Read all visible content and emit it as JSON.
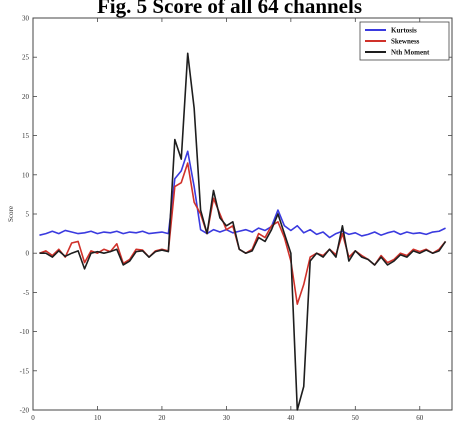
{
  "figure_title": "Fig. 5 Score of all 64 channels",
  "colors": {
    "kurtosis": "#3a3adf",
    "skewness": "#d0312a",
    "nth_moment": "#1e1e1e",
    "axes": "#444444"
  },
  "chart_data": {
    "type": "line",
    "title": "Fig. 5 Score of all 64 channels",
    "xlabel": "",
    "ylabel": "Score",
    "xlim": [
      0,
      65
    ],
    "ylim": [
      -20,
      30
    ],
    "xticks": [
      0,
      10,
      20,
      30,
      40,
      50,
      60
    ],
    "yticks": [
      -20,
      -15,
      -10,
      -5,
      0,
      5,
      10,
      15,
      20,
      25,
      30
    ],
    "xtick_labels": [
      "0",
      "10",
      "20",
      "30",
      "40",
      "50",
      "60"
    ],
    "ytick_labels": [
      "-20",
      "-15",
      "-10",
      "-5",
      "0",
      "5",
      "10",
      "15",
      "20",
      "25",
      "30"
    ],
    "grid": false,
    "legend_position": "top-right",
    "x": [
      1,
      2,
      3,
      4,
      5,
      6,
      7,
      8,
      9,
      10,
      11,
      12,
      13,
      14,
      15,
      16,
      17,
      18,
      19,
      20,
      21,
      22,
      23,
      24,
      25,
      26,
      27,
      28,
      29,
      30,
      31,
      32,
      33,
      34,
      35,
      36,
      37,
      38,
      39,
      40,
      41,
      42,
      43,
      44,
      45,
      46,
      47,
      48,
      49,
      50,
      51,
      52,
      53,
      54,
      55,
      56,
      57,
      58,
      59,
      60,
      61,
      62,
      63,
      64
    ],
    "series": [
      {
        "name": "Kurtosis",
        "color": "#3a3adf",
        "values": [
          2.3,
          2.5,
          2.8,
          2.5,
          2.9,
          2.7,
          2.5,
          2.6,
          2.8,
          2.5,
          2.7,
          2.6,
          2.8,
          2.5,
          2.7,
          2.6,
          2.8,
          2.5,
          2.6,
          2.7,
          2.5,
          9.5,
          10.5,
          13.0,
          8.5,
          3.0,
          2.5,
          3.0,
          2.7,
          3.0,
          2.6,
          2.8,
          3.0,
          2.7,
          3.2,
          2.9,
          3.4,
          5.5,
          3.5,
          2.9,
          3.5,
          2.6,
          3.0,
          2.4,
          2.7,
          2.0,
          2.5,
          2.8,
          2.4,
          2.6,
          2.2,
          2.4,
          2.7,
          2.3,
          2.6,
          2.8,
          2.4,
          2.7,
          2.5,
          2.6,
          2.4,
          2.7,
          2.8,
          3.2
        ]
      },
      {
        "name": "Skewness",
        "color": "#d0312a",
        "values": [
          0.0,
          0.3,
          -0.3,
          0.5,
          -0.5,
          1.3,
          1.5,
          -1.2,
          0.3,
          0.0,
          0.5,
          0.2,
          1.2,
          -1.3,
          -0.8,
          0.5,
          0.4,
          -0.5,
          0.3,
          0.5,
          0.3,
          8.5,
          9.0,
          11.5,
          6.5,
          5.0,
          2.5,
          7.0,
          5.0,
          3.0,
          3.5,
          0.5,
          0.0,
          0.5,
          2.5,
          2.0,
          3.5,
          4.0,
          2.0,
          -1.0,
          -6.5,
          -4.0,
          -0.5,
          0.0,
          -0.3,
          0.5,
          -0.2,
          2.5,
          -0.5,
          0.3,
          -0.3,
          -0.8,
          -1.5,
          -0.3,
          -1.2,
          -0.8,
          0.0,
          -0.3,
          0.5,
          0.2,
          0.5,
          0.0,
          0.5,
          1.5
        ]
      },
      {
        "name": "Nth Moment",
        "color": "#1e1e1e",
        "values": [
          0.0,
          0.0,
          -0.5,
          0.3,
          -0.4,
          0.0,
          0.3,
          -2.0,
          0.0,
          0.2,
          0.0,
          0.2,
          0.5,
          -1.5,
          -1.0,
          0.2,
          0.3,
          -0.5,
          0.2,
          0.4,
          0.2,
          14.5,
          12.0,
          25.5,
          18.5,
          5.5,
          2.5,
          8.0,
          4.5,
          3.5,
          4.0,
          0.5,
          0.0,
          0.3,
          2.0,
          1.5,
          3.0,
          5.0,
          2.5,
          0.0,
          -20.0,
          -17.0,
          -1.0,
          0.0,
          -0.5,
          0.5,
          -0.5,
          3.5,
          -1.0,
          0.3,
          -0.5,
          -0.8,
          -1.5,
          -0.5,
          -1.5,
          -1.0,
          -0.2,
          -0.5,
          0.3,
          0.0,
          0.4,
          0.0,
          0.3,
          1.5
        ]
      }
    ]
  }
}
